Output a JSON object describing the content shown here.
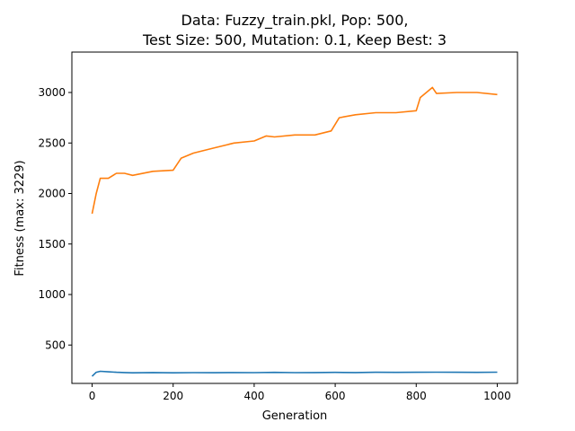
{
  "chart_data": {
    "type": "line",
    "title_line1": "Data: Fuzzy_train.pkl, Pop: 500,",
    "title_line2": "Test Size: 500, Mutation: 0.1, Keep Best: 3",
    "xlabel": "Generation",
    "ylabel": "Fitness (max: 3229)",
    "xlim": [
      -50,
      1050
    ],
    "ylim": [
      120,
      3400
    ],
    "x_ticks": [
      0,
      200,
      400,
      600,
      800,
      1000
    ],
    "x_tick_labels": [
      "0",
      "200",
      "400",
      "600",
      "800",
      "1000"
    ],
    "y_ticks": [
      500,
      1000,
      1500,
      2000,
      2500,
      3000
    ],
    "y_tick_labels": [
      "500",
      "1000",
      "1500",
      "2000",
      "2500",
      "3000"
    ],
    "grid": false,
    "series": [
      {
        "color": "#1f77b4",
        "x": [
          0,
          10,
          20,
          40,
          60,
          80,
          100,
          150,
          200,
          250,
          300,
          350,
          400,
          450,
          500,
          550,
          600,
          650,
          700,
          750,
          800,
          850,
          900,
          950,
          1000
        ],
        "y": [
          190,
          230,
          240,
          235,
          230,
          228,
          225,
          228,
          225,
          227,
          226,
          228,
          227,
          229,
          227,
          228,
          229,
          228,
          230,
          229,
          230,
          231,
          230,
          229,
          231
        ]
      },
      {
        "color": "#ff7f0e",
        "x": [
          0,
          5,
          10,
          20,
          40,
          60,
          80,
          100,
          150,
          200,
          220,
          250,
          300,
          350,
          400,
          430,
          450,
          500,
          550,
          590,
          610,
          650,
          700,
          750,
          800,
          810,
          840,
          850,
          900,
          950,
          1000
        ],
        "y": [
          1800,
          1900,
          2000,
          2150,
          2150,
          2200,
          2200,
          2180,
          2220,
          2230,
          2350,
          2400,
          2450,
          2500,
          2520,
          2570,
          2560,
          2580,
          2580,
          2620,
          2750,
          2780,
          2800,
          2800,
          2820,
          2950,
          3050,
          2990,
          3000,
          3000,
          2980
        ]
      }
    ]
  }
}
